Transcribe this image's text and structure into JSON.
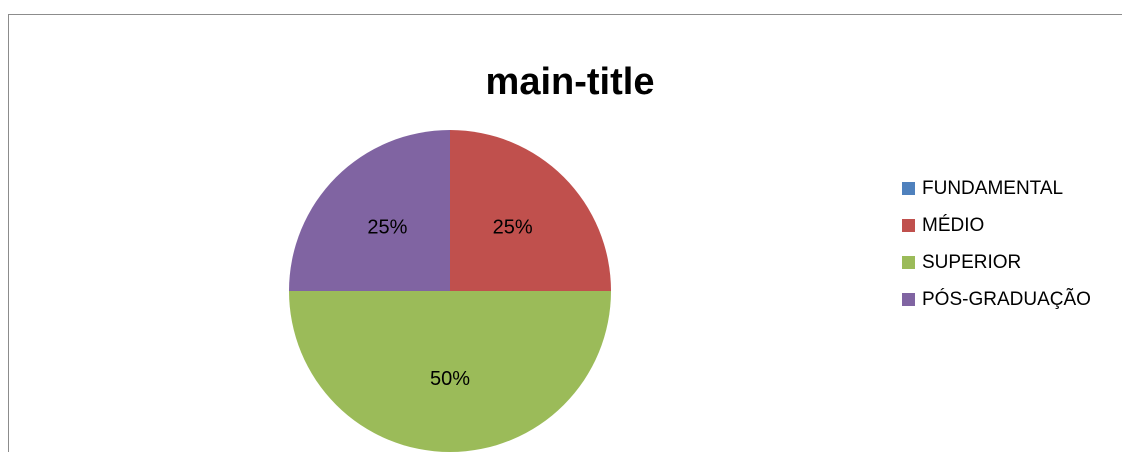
{
  "chart_data": {
    "type": "pie",
    "title": "main-title",
    "categories": [
      "FUNDAMENTAL",
      "MÉDIO",
      "SUPERIOR",
      "PÓS-GRADUAÇÃO"
    ],
    "values": [
      0,
      25,
      50,
      25
    ],
    "data_labels": [
      "",
      "25%",
      "50%",
      "25%"
    ],
    "colors": [
      "#4f81bd",
      "#c0504d",
      "#9bbb59",
      "#8064a2"
    ],
    "legend_position": "right"
  }
}
